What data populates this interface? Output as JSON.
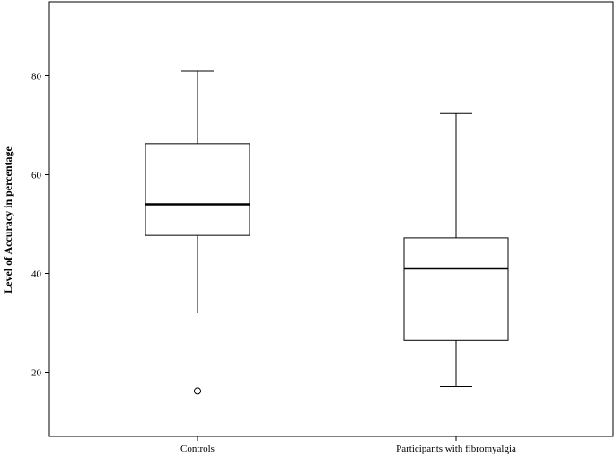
{
  "chart_data": {
    "type": "boxplot",
    "ylabel": "Level of Accuracy in percentage",
    "xlabel": "",
    "ylim": [
      7,
      95
    ],
    "yticks": [
      20,
      40,
      60,
      80
    ],
    "grid": false,
    "categories": [
      "Controls",
      "Participants with fibromyalgia"
    ],
    "boxes": [
      {
        "category": "Controls",
        "min": 32,
        "q1": 47.7,
        "median": 54,
        "q3": 66.3,
        "max": 81,
        "outliers": [
          16.2
        ]
      },
      {
        "category": "Participants with fibromyalgia",
        "min": 17.1,
        "q1": 26.4,
        "median": 41,
        "q3": 47.2,
        "max": 72.4,
        "outliers": []
      }
    ]
  }
}
